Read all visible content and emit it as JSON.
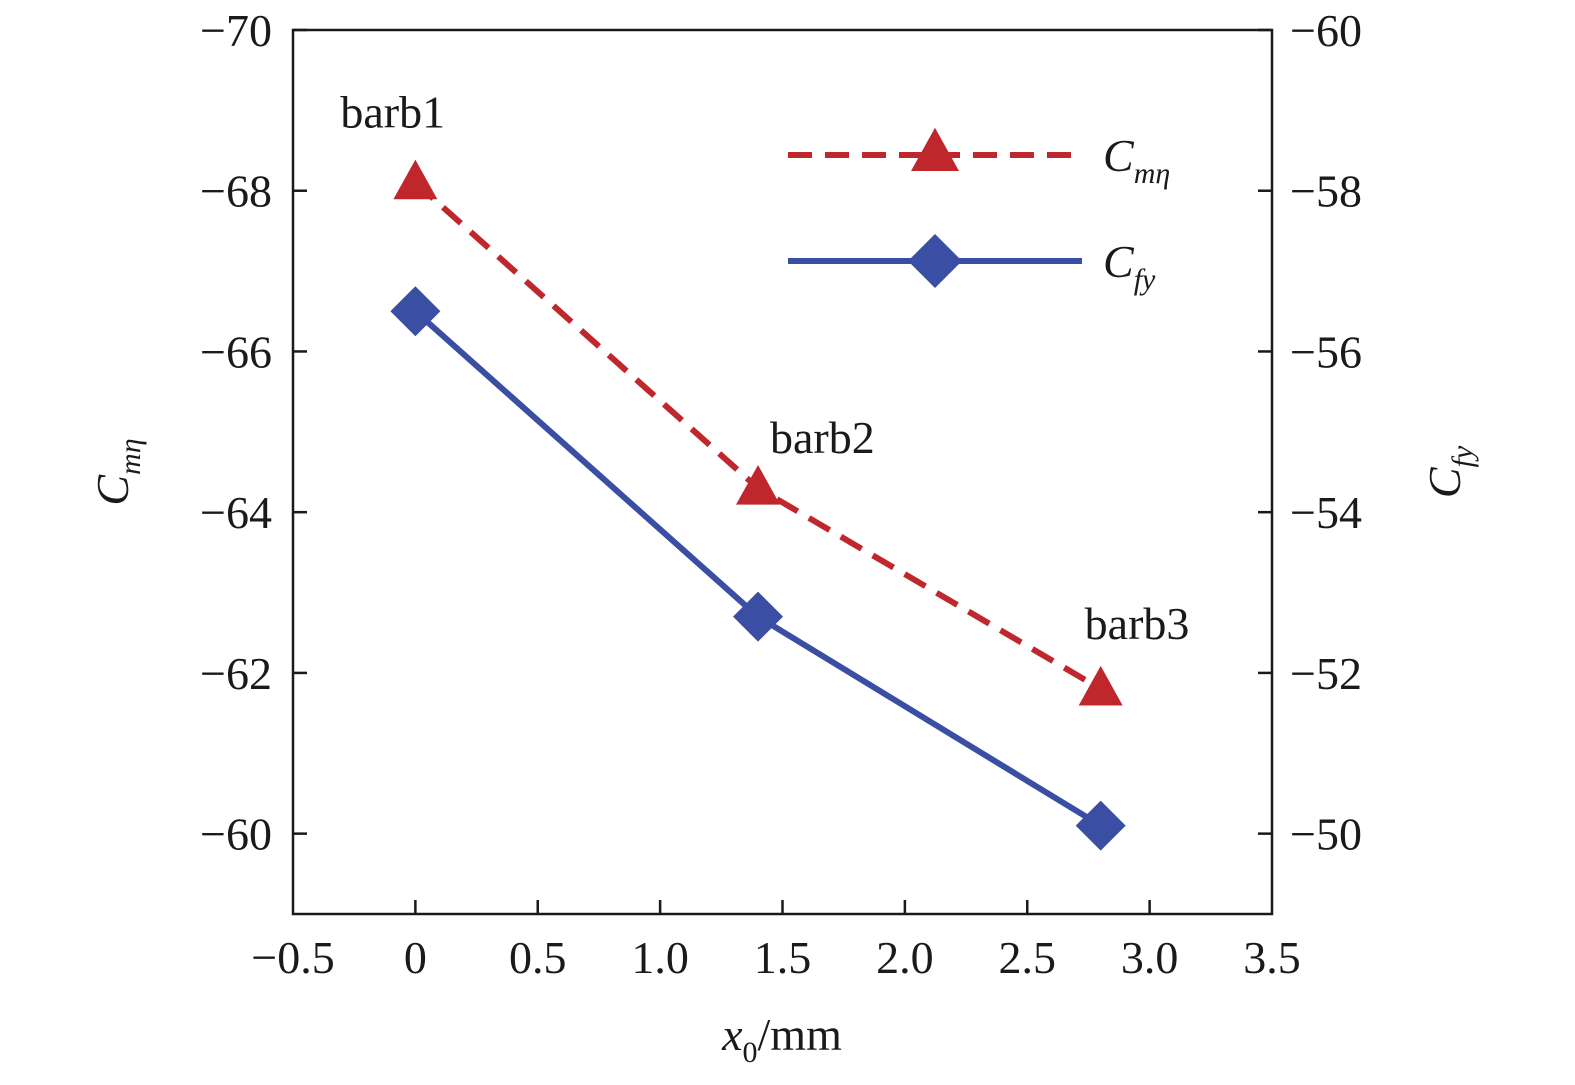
{
  "chart_data": {
    "type": "line",
    "xlabel": {
      "main": "x",
      "sub": "0",
      "rest": "/mm"
    },
    "ylabel_left": {
      "main": "C",
      "sub": "mη"
    },
    "ylabel_right": {
      "main": "C",
      "sub": "fy"
    },
    "xlim": [
      -0.5,
      3.5
    ],
    "x_ticks": [
      -0.5,
      0,
      0.5,
      1.0,
      1.5,
      2.0,
      2.5,
      3.0,
      3.5
    ],
    "x_tick_labels": [
      "−0.5",
      "0",
      "0.5",
      "1.0",
      "1.5",
      "2.0",
      "2.5",
      "3.0",
      "3.5"
    ],
    "ylim_left": [
      -59,
      -70
    ],
    "y_left_ticks": [
      -70,
      -68,
      -66,
      -64,
      -62,
      -60
    ],
    "y_left_tick_labels": [
      "−70",
      "−68",
      "−66",
      "−64",
      "−62",
      "−60"
    ],
    "ylim_right": [
      -49,
      -60
    ],
    "y_right_ticks": [
      -60,
      -58,
      -56,
      -54,
      -52,
      -50
    ],
    "y_right_tick_labels": [
      "−60",
      "−58",
      "−56",
      "−54",
      "−52",
      "−50"
    ],
    "series": [
      {
        "name": {
          "main": "C",
          "sub": "mη"
        },
        "axis": "left",
        "color": "#c0272d",
        "line_style": "dashed",
        "marker": "triangle",
        "x": [
          0,
          1.4,
          2.8
        ],
        "y": [
          -68.1,
          -64.3,
          -61.8
        ]
      },
      {
        "name": {
          "main": "C",
          "sub": "fy"
        },
        "axis": "right",
        "color": "#3a4fa3",
        "line_style": "solid",
        "marker": "diamond",
        "x": [
          0,
          1.4,
          2.8
        ],
        "y": [
          -56.5,
          -52.7,
          -50.1
        ]
      }
    ],
    "annotations": [
      {
        "text": "barb1",
        "x": 0,
        "y_left": -68.1
      },
      {
        "text": "barb2",
        "x": 1.4,
        "y_left": -64.3
      },
      {
        "text": "barb3",
        "x": 2.8,
        "y_left": -61.8
      }
    ],
    "legend_position": "top-right",
    "grid": false
  }
}
